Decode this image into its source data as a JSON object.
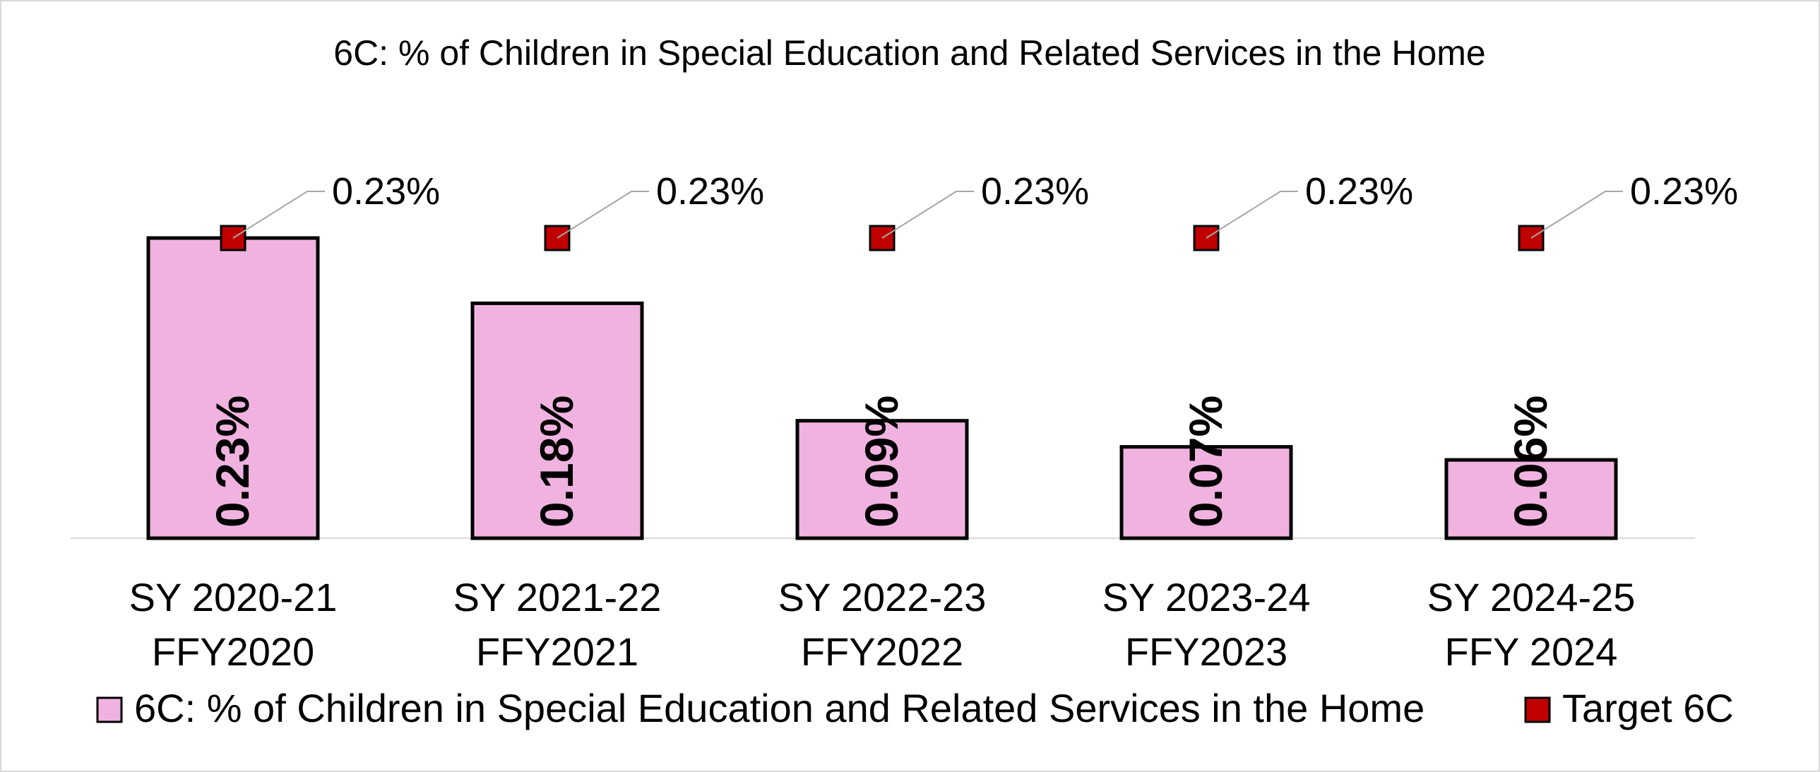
{
  "chart_data": {
    "type": "bar",
    "title": "6C: % of Children in Special Education and Related Services in the Home",
    "categories": [
      [
        "SY 2020-21",
        "FFY2020"
      ],
      [
        "SY 2021-22",
        "FFY2021"
      ],
      [
        "SY 2022-23",
        "FFY2022"
      ],
      [
        "SY 2023-24",
        "FFY2023"
      ],
      [
        "SY 2024-25",
        "FFY 2024"
      ]
    ],
    "series": [
      {
        "name": "6C: % of Children in Special Education and Related Services in the Home",
        "kind": "bar",
        "values": [
          0.23,
          0.18,
          0.09,
          0.07,
          0.06
        ],
        "labels": [
          "0.23%",
          "0.18%",
          "0.09%",
          "0.07%",
          "0.06%"
        ],
        "color": "#F0B3E0"
      },
      {
        "name": "Target 6C",
        "kind": "marker",
        "values": [
          0.23,
          0.23,
          0.23,
          0.23,
          0.23
        ],
        "labels": [
          "0.23%",
          "0.23%",
          "0.23%",
          "0.23%",
          "0.23%"
        ],
        "color": "#C00000"
      }
    ],
    "ylim": [
      0,
      0.23
    ],
    "xlabel": "",
    "ylabel": "",
    "grid": false,
    "legend_position": "bottom"
  }
}
